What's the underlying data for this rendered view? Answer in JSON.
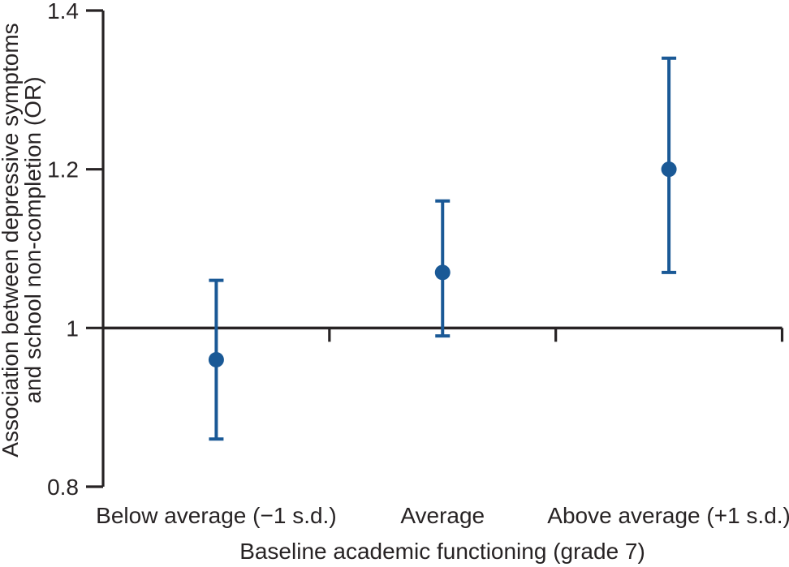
{
  "chart_data": {
    "type": "scatter",
    "subtype": "point-estimate-with-95ci-error-bars",
    "title": "",
    "xlabel": "Baseline academic functioning (grade 7)",
    "ylabel_line1": "Association between depressive symptoms",
    "ylabel_line2": "and school non-completion (OR)",
    "categories": [
      "Below average (−1 s.d.)",
      "Average",
      "Above average (+1 s.d.)"
    ],
    "points": [
      {
        "category": "Below average (−1 s.d.)",
        "or": 0.96,
        "ci_low": 0.86,
        "ci_high": 1.06
      },
      {
        "category": "Average",
        "or": 1.07,
        "ci_low": 0.99,
        "ci_high": 1.16
      },
      {
        "category": "Above average (+1 s.d.)",
        "or": 1.2,
        "ci_low": 1.07,
        "ci_high": 1.34
      }
    ],
    "ylim": [
      0.8,
      1.4
    ],
    "yticks": [
      0.8,
      1.0,
      1.2,
      1.4
    ],
    "ytick_labels": [
      "0.8",
      "1",
      "1.2",
      "1.4"
    ],
    "reference_line": 1.0,
    "grid": false,
    "legend": false,
    "marker_color": "#1a5996",
    "axis_color": "#272324"
  }
}
